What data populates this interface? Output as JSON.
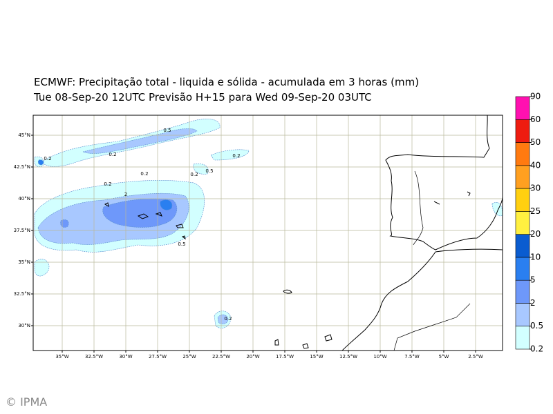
{
  "header": {
    "title": "ECMWF: Precipitação total - liquida e sólida - acumulada em 3 horas (mm)",
    "subtitle": "Tue 08-Sep-20 12UTC Previsão H+15 para Wed 09-Sep-20 03UTC"
  },
  "map": {
    "lon_ticks": [
      {
        "value": -35,
        "label": "35°W"
      },
      {
        "value": -32.5,
        "label": "32.5°W"
      },
      {
        "value": -30,
        "label": "30°W"
      },
      {
        "value": -27.5,
        "label": "27.5°W"
      },
      {
        "value": -25,
        "label": "25°W"
      },
      {
        "value": -22.5,
        "label": "22.5°W"
      },
      {
        "value": -20,
        "label": "20°W"
      },
      {
        "value": -17.5,
        "label": "17.5°W"
      },
      {
        "value": -15,
        "label": "15°W"
      },
      {
        "value": -12.5,
        "label": "12.5°W"
      },
      {
        "value": -10,
        "label": "10°W"
      },
      {
        "value": -7.5,
        "label": "7.5°W"
      },
      {
        "value": -5,
        "label": "5°W"
      },
      {
        "value": -2.5,
        "label": "2.5°W"
      }
    ],
    "lat_ticks": [
      {
        "value": 45,
        "label": "45°N"
      },
      {
        "value": 42.5,
        "label": "42.5°N"
      },
      {
        "value": 40,
        "label": "40°N"
      },
      {
        "value": 37.5,
        "label": "37.5°N"
      },
      {
        "value": 35,
        "label": "35°N"
      },
      {
        "value": 32.5,
        "label": "32.5°N"
      },
      {
        "value": 30,
        "label": "30°N"
      }
    ],
    "contour_labels": [
      "0.5",
      "0.2",
      "0.2",
      "0.2",
      "0.2",
      "0.5",
      "0.2",
      "0.2",
      "2",
      "0.5",
      "0.2"
    ]
  },
  "colorbar": {
    "levels": [
      0.2,
      0.5,
      2,
      5,
      10,
      20,
      25,
      30,
      40,
      50,
      60,
      90
    ],
    "colors": [
      "#d2ffff",
      "#a8c8ff",
      "#6e98fa",
      "#2a7ff0",
      "#0a5cd0",
      "#fff040",
      "#ffd010",
      "#ffa020",
      "#ff7a10",
      "#ee1c10",
      "#ff10b0"
    ]
  },
  "footer": {
    "copyright": "© IPMA"
  }
}
